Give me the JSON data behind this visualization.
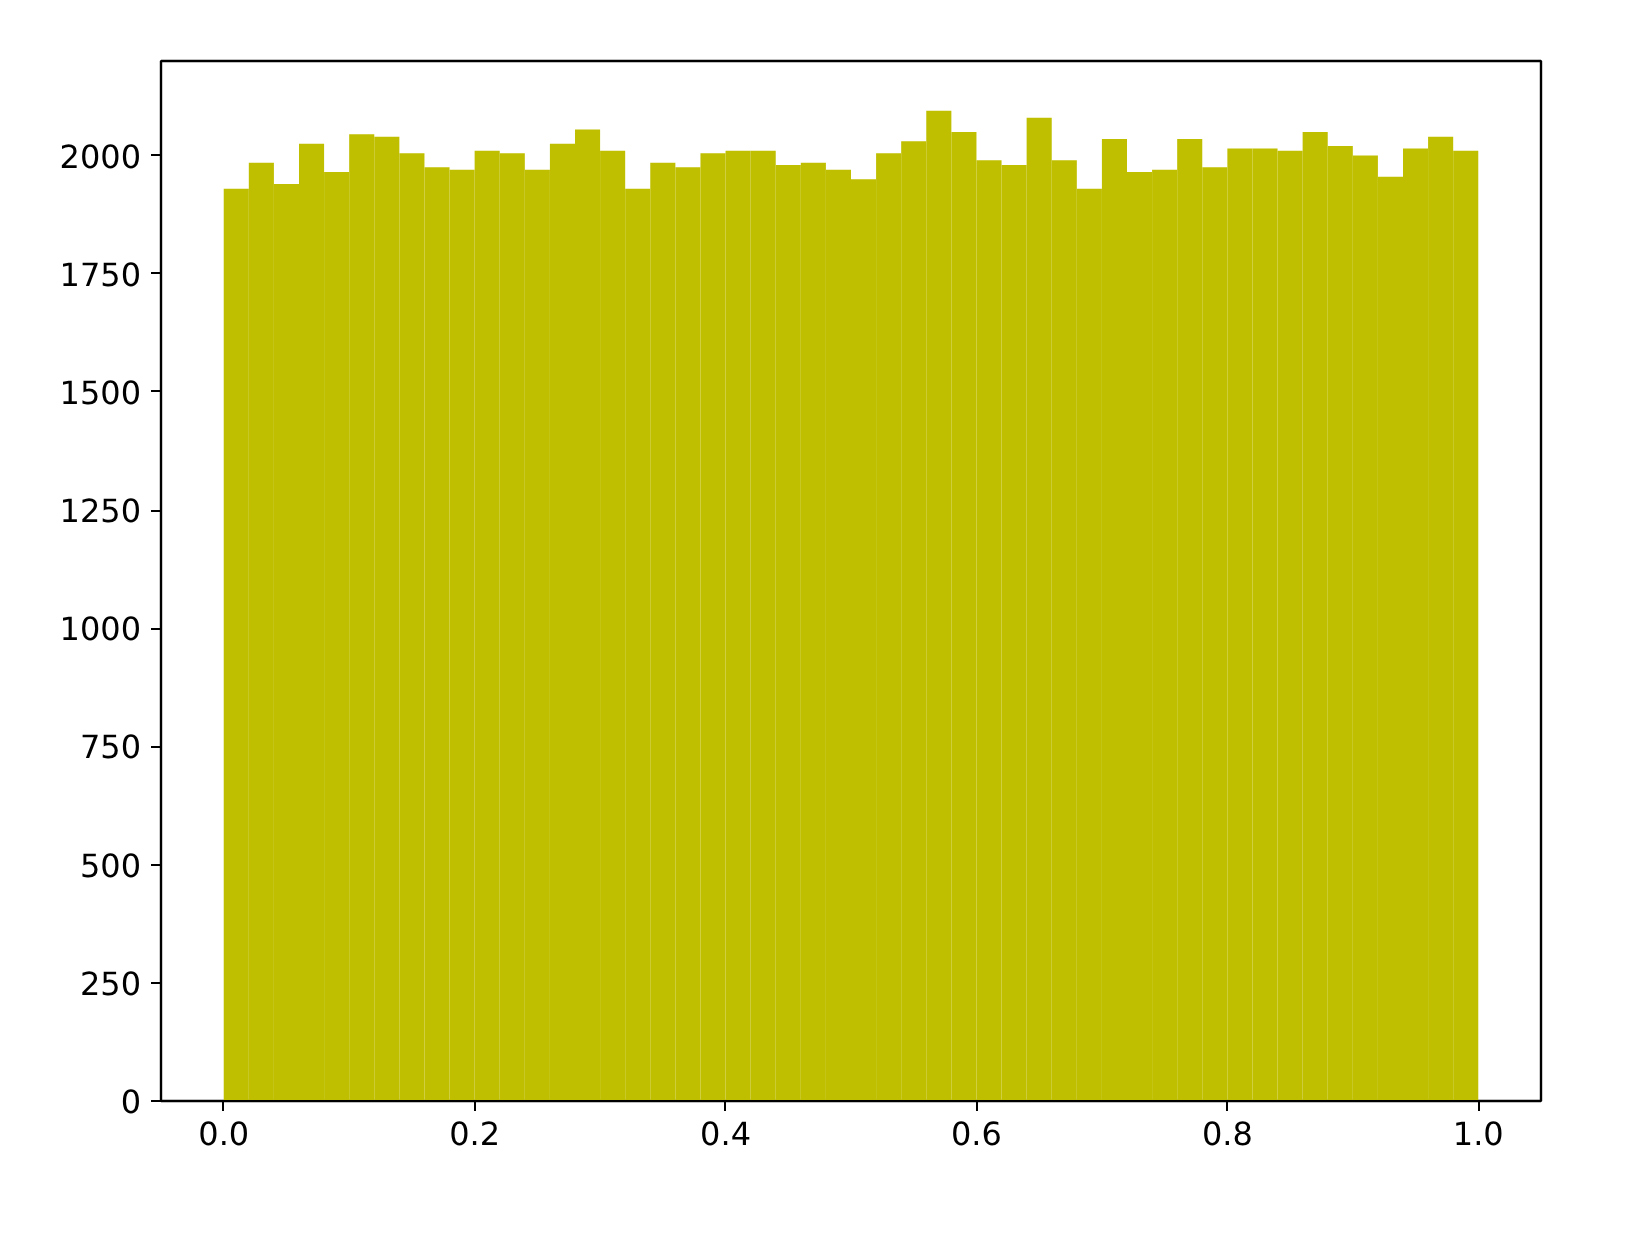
{
  "chart_data": {
    "type": "histogram",
    "color": "#bfbf00",
    "bins": [
      0.0,
      0.02,
      0.04,
      0.06,
      0.08,
      0.1,
      0.12,
      0.14,
      0.16,
      0.18,
      0.2,
      0.22,
      0.24,
      0.26,
      0.28,
      0.3,
      0.32,
      0.34,
      0.36,
      0.38,
      0.4,
      0.42,
      0.44,
      0.46,
      0.48,
      0.5,
      0.52,
      0.54,
      0.56,
      0.58,
      0.6,
      0.62,
      0.64,
      0.66,
      0.68,
      0.7,
      0.72,
      0.74,
      0.76,
      0.78,
      0.8,
      0.82,
      0.84,
      0.86,
      0.88,
      0.9,
      0.92,
      0.94,
      0.96,
      0.98,
      1.0
    ],
    "values": [
      1930,
      1985,
      1940,
      2025,
      1965,
      2045,
      2040,
      2005,
      1975,
      1970,
      2010,
      2005,
      1970,
      2025,
      2055,
      2010,
      1930,
      1985,
      1975,
      2005,
      2010,
      2010,
      1980,
      1985,
      1970,
      1950,
      2005,
      2030,
      2095,
      2050,
      1990,
      1980,
      2080,
      1990,
      1930,
      2035,
      1965,
      1970,
      2035,
      1975,
      2015,
      2015,
      2010,
      2050,
      2020,
      2000,
      1955,
      2015,
      2040,
      2010
    ],
    "xlim": [
      -0.05,
      1.05
    ],
    "xticks": [
      {
        "value": 0,
        "label": "0.0"
      },
      {
        "value": 0.2,
        "label": "0.2"
      },
      {
        "value": 0.4,
        "label": "0.4"
      },
      {
        "value": 0.6,
        "label": "0.6"
      },
      {
        "value": 0.8,
        "label": "0.8"
      },
      {
        "value": 1,
        "label": "1.0"
      }
    ],
    "ylim": [
      0,
      2200
    ],
    "yticks": [
      0,
      250,
      500,
      750,
      1000,
      1250,
      1500,
      1750,
      2000
    ],
    "grid": false
  }
}
